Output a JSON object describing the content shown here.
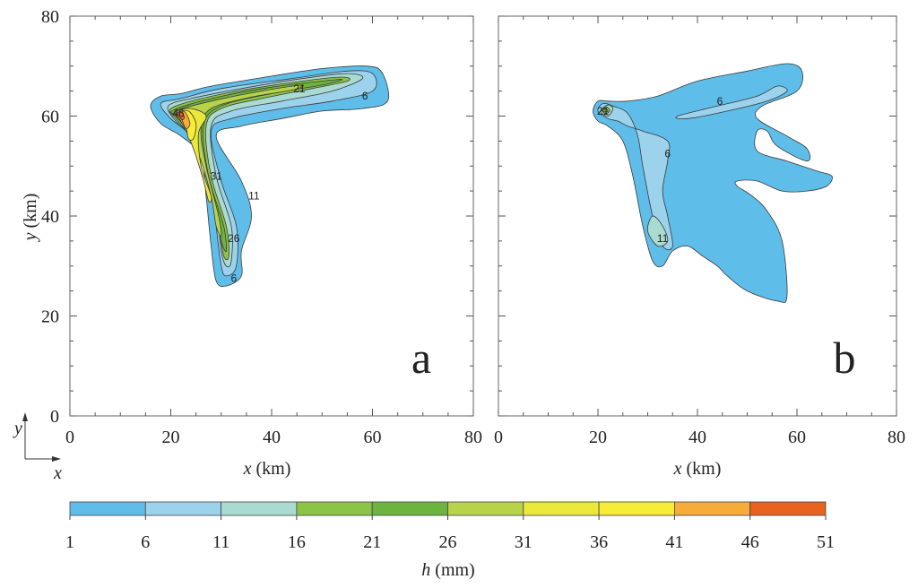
{
  "chart_data": [
    {
      "type": "heatmap",
      "panel_label": "a",
      "xlabel_var": "x",
      "xlabel_unit": " (km)",
      "ylabel_var": "y",
      "ylabel_unit": " (km)",
      "xlim": [
        0,
        80
      ],
      "ylim": [
        0,
        80
      ],
      "x_ticks": [
        0,
        20,
        40,
        60,
        80
      ],
      "y_ticks": [
        0,
        20,
        40,
        60,
        80
      ],
      "contour_labels": [
        {
          "text": "46",
          "x": 21.5,
          "y": 60.5
        },
        {
          "text": "21",
          "x": 45.5,
          "y": 65.5
        },
        {
          "text": "6",
          "x": 58.5,
          "y": 64.0
        },
        {
          "text": "31",
          "x": 29.0,
          "y": 48.0
        },
        {
          "text": "11",
          "x": 36.5,
          "y": 44.0
        },
        {
          "text": "26",
          "x": 32.5,
          "y": 35.5
        },
        {
          "text": "6",
          "x": 32.5,
          "y": 27.5
        }
      ],
      "layers": [
        {
          "level": 1,
          "points": [
            [
              16,
              62
            ],
            [
              18,
              64
            ],
            [
              22,
              64.5
            ],
            [
              28,
              66
            ],
            [
              40,
              68
            ],
            [
              50,
              69.5
            ],
            [
              59,
              70
            ],
            [
              62,
              68.5
            ],
            [
              63,
              63
            ],
            [
              58,
              61.5
            ],
            [
              50,
              61
            ],
            [
              42,
              59.5
            ],
            [
              34,
              58
            ],
            [
              29,
              56
            ],
            [
              34,
              47
            ],
            [
              36,
              40
            ],
            [
              34,
              33
            ],
            [
              34,
              28
            ],
            [
              31,
              26
            ],
            [
              29,
              27
            ],
            [
              28,
              34
            ],
            [
              27,
              44
            ],
            [
              26,
              52
            ],
            [
              22,
              56
            ],
            [
              18,
              58.5
            ]
          ]
        },
        {
          "level": 6,
          "points": [
            [
              18,
              62.5
            ],
            [
              22,
              63.5
            ],
            [
              30,
              65.5
            ],
            [
              44,
              67.5
            ],
            [
              55,
              69
            ],
            [
              60,
              68.5
            ],
            [
              60,
              65
            ],
            [
              52,
              63
            ],
            [
              42,
              61.5
            ],
            [
              32,
              59.5
            ],
            [
              28,
              57
            ],
            [
              30,
              47
            ],
            [
              33,
              38
            ],
            [
              33,
              30
            ],
            [
              31,
              28
            ],
            [
              30,
              30
            ],
            [
              29,
              38
            ],
            [
              28,
              47
            ],
            [
              26,
              53
            ],
            [
              23,
              57
            ],
            [
              20,
              59.5
            ]
          ]
        },
        {
          "level": 11,
          "points": [
            [
              19.5,
              62
            ],
            [
              24,
              63.5
            ],
            [
              34,
              65.5
            ],
            [
              46,
              67.5
            ],
            [
              55,
              68.5
            ],
            [
              58,
              67.5
            ],
            [
              52,
              65
            ],
            [
              42,
              63
            ],
            [
              32,
              61
            ],
            [
              28,
              58
            ],
            [
              29,
              48
            ],
            [
              32,
              38
            ],
            [
              32,
              31
            ],
            [
              31,
              30
            ],
            [
              30,
              33
            ],
            [
              29,
              42
            ],
            [
              27,
              50
            ],
            [
              25,
              55
            ],
            [
              21,
              59
            ]
          ]
        },
        {
          "level": 16,
          "points": [
            [
              20,
              61.5
            ],
            [
              26,
              63.5
            ],
            [
              36,
              65.5
            ],
            [
              46,
              67
            ],
            [
              54,
              67.8
            ],
            [
              55,
              67
            ],
            [
              48,
              65.5
            ],
            [
              38,
              63.5
            ],
            [
              30,
              61.5
            ],
            [
              27,
              58
            ],
            [
              28,
              48
            ],
            [
              31,
              38
            ],
            [
              31.5,
              32
            ],
            [
              30.5,
              32
            ],
            [
              29.5,
              38
            ],
            [
              28,
              46
            ],
            [
              26,
              52
            ],
            [
              23,
              57
            ],
            [
              21,
              59.5
            ]
          ]
        },
        {
          "level": 21,
          "points": [
            [
              20.5,
              61.2
            ],
            [
              28,
              63.5
            ],
            [
              40,
              65.8
            ],
            [
              50,
              67
            ],
            [
              54,
              67.3
            ],
            [
              50,
              66.2
            ],
            [
              40,
              64.5
            ],
            [
              30,
              62
            ],
            [
              26.5,
              58
            ],
            [
              27.5,
              48
            ],
            [
              30.5,
              38
            ],
            [
              31,
              33
            ],
            [
              30,
              35
            ],
            [
              29,
              41
            ],
            [
              27.5,
              47
            ],
            [
              25.5,
              53
            ],
            [
              23,
              57.5
            ],
            [
              21,
              60
            ]
          ]
        },
        {
          "level": 26,
          "points": [
            [
              21,
              61
            ],
            [
              28,
              63
            ],
            [
              38,
              65
            ],
            [
              46,
              66.2
            ],
            [
              44,
              65.2
            ],
            [
              36,
              63.8
            ],
            [
              28,
              61.5
            ],
            [
              26,
              57.5
            ],
            [
              27,
              50
            ],
            [
              29.5,
              40
            ],
            [
              30,
              36
            ],
            [
              29,
              38
            ],
            [
              28,
              44
            ],
            [
              26,
              51
            ],
            [
              24,
              56
            ],
            [
              22,
              59.5
            ]
          ]
        },
        {
          "level": 31,
          "points": [
            [
              21,
              60.8
            ],
            [
              24,
              61.5
            ],
            [
              27,
              60
            ],
            [
              25.5,
              56.5
            ],
            [
              26,
              50
            ],
            [
              28,
              44
            ],
            [
              27.5,
              43
            ],
            [
              26.5,
              47
            ],
            [
              25,
              52
            ],
            [
              23.5,
              56
            ],
            [
              22,
              59
            ]
          ]
        },
        {
          "level": 36,
          "points": [
            [
              21.2,
              60.6
            ],
            [
              23.5,
              61
            ],
            [
              25,
              58.5
            ],
            [
              24.5,
              55.5
            ],
            [
              23.5,
              55.5
            ],
            [
              23,
              58
            ],
            [
              21.8,
              59.8
            ]
          ]
        },
        {
          "level": 41,
          "points": [
            [
              21.3,
              60.5
            ],
            [
              22.8,
              60.8
            ],
            [
              23.8,
              58.5
            ],
            [
              23,
              57.5
            ],
            [
              22.2,
              59.2
            ]
          ]
        },
        {
          "level": 46,
          "points": [
            [
              21.3,
              60.5
            ],
            [
              22,
              60.9
            ],
            [
              22.7,
              59.8
            ],
            [
              22.2,
              59.3
            ]
          ]
        }
      ]
    },
    {
      "type": "heatmap",
      "panel_label": "b",
      "xlabel_var": "x",
      "xlabel_unit": " (km)",
      "ylabel_var": "",
      "ylabel_unit": "",
      "xlim": [
        0,
        80
      ],
      "ylim": [
        0,
        80
      ],
      "x_ticks": [
        0,
        20,
        40,
        60,
        80
      ],
      "y_ticks": [
        0,
        20,
        40,
        60,
        80
      ],
      "contour_labels": [
        {
          "text": "21",
          "x": 21.0,
          "y": 61.0
        },
        {
          "text": "6",
          "x": 44.5,
          "y": 63.0
        },
        {
          "text": "6",
          "x": 34.0,
          "y": 52.5
        },
        {
          "text": "11",
          "x": 33.0,
          "y": 35.5
        }
      ],
      "layers": [
        {
          "level": 1,
          "points": [
            [
              19,
              61
            ],
            [
              20,
              63
            ],
            [
              22,
              63
            ],
            [
              26,
              63
            ],
            [
              32,
              64
            ],
            [
              40,
              67
            ],
            [
              50,
              69
            ],
            [
              58,
              70.5
            ],
            [
              61,
              69
            ],
            [
              60,
              65
            ],
            [
              53,
              62
            ],
            [
              52,
              59.5
            ],
            [
              58,
              56
            ],
            [
              62,
              53.5
            ],
            [
              62,
              51
            ],
            [
              56,
              54
            ],
            [
              54,
              57
            ],
            [
              52,
              57
            ],
            [
              52,
              53
            ],
            [
              58,
              51
            ],
            [
              64,
              49
            ],
            [
              67,
              48
            ],
            [
              66,
              46
            ],
            [
              62,
              45
            ],
            [
              57,
              45
            ],
            [
              52,
              47
            ],
            [
              48,
              47
            ],
            [
              48,
              46
            ],
            [
              51,
              44
            ],
            [
              54,
              41
            ],
            [
              57,
              35
            ],
            [
              58,
              24
            ],
            [
              56,
              23
            ],
            [
              50,
              25
            ],
            [
              46,
              28
            ],
            [
              44,
              30
            ],
            [
              41,
              32
            ],
            [
              38,
              34
            ],
            [
              35,
              33
            ],
            [
              33,
              30
            ],
            [
              31,
              31
            ],
            [
              29,
              38
            ],
            [
              27,
              48
            ],
            [
              25,
              55
            ],
            [
              22,
              58
            ],
            [
              20,
              59
            ]
          ]
        },
        {
          "level": 6,
          "points": [
            [
              20,
              61
            ],
            [
              21,
              62.5
            ],
            [
              23,
              62
            ],
            [
              26,
              60.5
            ],
            [
              28,
              56
            ],
            [
              29,
              50
            ],
            [
              31,
              40
            ],
            [
              33,
              34
            ],
            [
              35,
              34
            ],
            [
              34,
              40
            ],
            [
              33,
              45
            ],
            [
              34,
              51
            ],
            [
              34,
              55
            ],
            [
              29,
              57
            ],
            [
              26,
              58
            ],
            [
              24,
              59
            ],
            [
              22,
              59.5
            ]
          ]
        },
        {
          "level": 11,
          "points": [
            [
              20.5,
              61
            ],
            [
              22,
              62.2
            ],
            [
              23,
              61.5
            ],
            [
              22,
              60
            ]
          ]
        },
        {
          "level": 11,
          "points": [
            [
              30,
              37
            ],
            [
              32,
              34
            ],
            [
              34,
              35
            ],
            [
              33,
              38
            ],
            [
              31,
              40
            ]
          ]
        },
        {
          "level": 6,
          "points": [
            [
              36,
              60
            ],
            [
              44,
              62
            ],
            [
              52,
              64
            ],
            [
              56,
              66
            ],
            [
              58,
              65
            ],
            [
              54,
              63
            ],
            [
              46,
              61
            ],
            [
              38,
              59.5
            ]
          ]
        },
        {
          "level": 16,
          "points": [
            [
              20.8,
              61.2
            ],
            [
              21.8,
              61.8
            ],
            [
              22.4,
              61
            ],
            [
              21.5,
              60.5
            ]
          ]
        },
        {
          "level": 21,
          "points": [
            [
              21,
              61.1
            ],
            [
              21.6,
              61.5
            ],
            [
              22,
              61
            ],
            [
              21.4,
              60.8
            ]
          ]
        }
      ]
    }
  ],
  "colorbar": {
    "levels": [
      1,
      6,
      11,
      16,
      21,
      26,
      31,
      36,
      41,
      46,
      51
    ],
    "colors": [
      "#5ebde9",
      "#9dd2ec",
      "#a9dbd1",
      "#8cc446",
      "#6db43e",
      "#b8d24a",
      "#ebe83c",
      "#f7ec36",
      "#f6ab3a",
      "#e9621f"
    ],
    "label_var": "h",
    "label_unit": " (mm)"
  },
  "orientation_indicator": {
    "y_label": "y",
    "x_label": "x"
  }
}
